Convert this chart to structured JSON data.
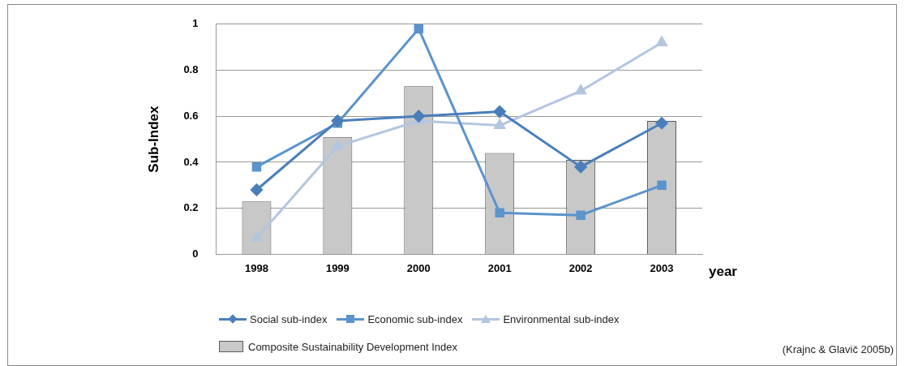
{
  "chart_data": {
    "type": "line",
    "xlabel": "year",
    "ylabel": "Sub-Index",
    "categories": [
      "1998",
      "1999",
      "2000",
      "2001",
      "2002",
      "2003"
    ],
    "series": [
      {
        "name": "Social sub-index",
        "marker": "diamond",
        "color": "#4a7ebb",
        "values": [
          0.28,
          0.58,
          0.6,
          0.62,
          0.38,
          0.57
        ]
      },
      {
        "name": "Economic sub-index",
        "marker": "square",
        "color": "#5b93cc",
        "values": [
          0.38,
          0.57,
          0.98,
          0.18,
          0.17,
          0.3
        ]
      },
      {
        "name": "Environmental sub-index",
        "marker": "triangle",
        "color": "#b3c6e0",
        "values": [
          0.07,
          0.47,
          0.58,
          0.56,
          0.71,
          0.92
        ]
      },
      {
        "name": "Composite Sustainability Development Index",
        "type": "bar",
        "color": "#c8c8c8",
        "values": [
          0.23,
          0.51,
          0.73,
          0.44,
          0.41,
          0.58
        ]
      }
    ],
    "ylim": [
      0,
      1
    ],
    "yticks": [
      0,
      0.2,
      0.4,
      0.6,
      0.8,
      1
    ],
    "grid": "y",
    "legend": "bottom",
    "annotations": [
      "(Krajnc & Glavič 2005b)"
    ]
  }
}
